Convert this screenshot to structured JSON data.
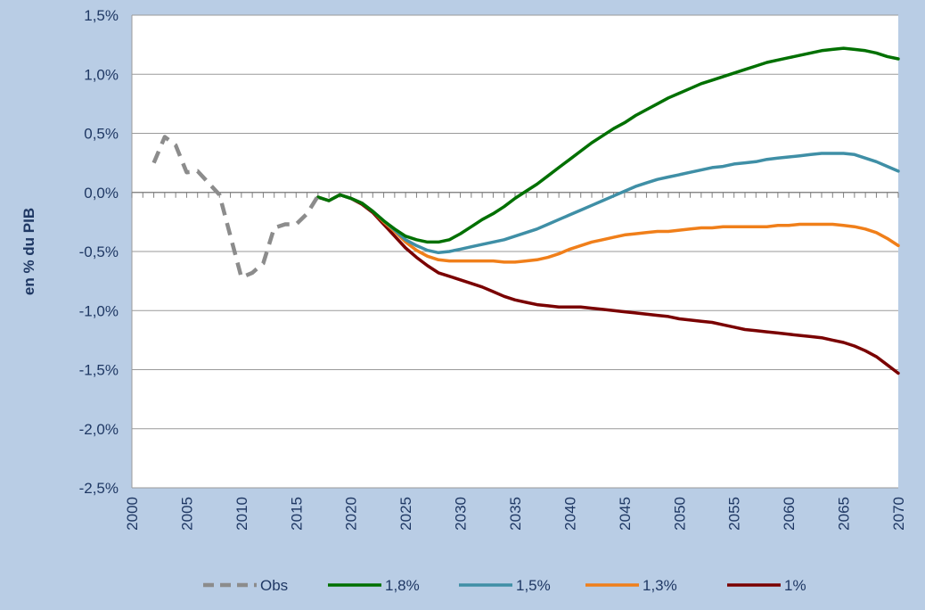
{
  "chart_data": {
    "type": "line",
    "title": "",
    "xlabel": "",
    "ylabel": "en % du PIB",
    "xlim": [
      2000,
      2070
    ],
    "ylim": [
      -2.5,
      1.5
    ],
    "x_ticks": [
      2000,
      2005,
      2010,
      2015,
      2020,
      2025,
      2030,
      2035,
      2040,
      2045,
      2050,
      2055,
      2060,
      2065,
      2070
    ],
    "x_tick_labels": [
      "2000",
      "2005",
      "2010",
      "2015",
      "2020",
      "2025",
      "2030",
      "2035",
      "2040",
      "2045",
      "2050",
      "2055",
      "2060",
      "2065",
      "2070"
    ],
    "y_ticks": [
      -2.5,
      -2.0,
      -1.5,
      -1.0,
      -0.5,
      0.0,
      0.5,
      1.0,
      1.5
    ],
    "y_tick_labels": [
      "-2,5%",
      "-2,0%",
      "-1,5%",
      "-1,0%",
      "-0,5%",
      "0,0%",
      "0,5%",
      "1,0%",
      "1,5%"
    ],
    "grid": true,
    "legend_position": "bottom",
    "series": [
      {
        "name": "Obs",
        "color": "#8c8c8c",
        "style": "dashed",
        "x": [
          2002,
          2003,
          2004,
          2005,
          2006,
          2007,
          2008,
          2009,
          2010,
          2011,
          2012,
          2013,
          2014,
          2015,
          2016,
          2017
        ],
        "y": [
          0.25,
          0.47,
          0.4,
          0.17,
          0.18,
          0.08,
          -0.02,
          -0.37,
          -0.72,
          -0.68,
          -0.6,
          -0.3,
          -0.27,
          -0.27,
          -0.18,
          -0.03
        ]
      },
      {
        "name": "1,8%",
        "color": "#007000",
        "style": "solid",
        "x": [
          2017,
          2018,
          2019,
          2020,
          2021,
          2022,
          2023,
          2024,
          2025,
          2026,
          2027,
          2028,
          2029,
          2030,
          2031,
          2032,
          2033,
          2034,
          2035,
          2036,
          2037,
          2038,
          2039,
          2040,
          2041,
          2042,
          2043,
          2044,
          2045,
          2046,
          2047,
          2048,
          2049,
          2050,
          2051,
          2052,
          2053,
          2054,
          2055,
          2056,
          2057,
          2058,
          2059,
          2060,
          2061,
          2062,
          2063,
          2064,
          2065,
          2066,
          2067,
          2068,
          2069,
          2070
        ],
        "y": [
          -0.04,
          -0.07,
          -0.02,
          -0.05,
          -0.09,
          -0.16,
          -0.24,
          -0.31,
          -0.37,
          -0.4,
          -0.42,
          -0.42,
          -0.4,
          -0.35,
          -0.29,
          -0.23,
          -0.18,
          -0.12,
          -0.05,
          0.01,
          0.07,
          0.14,
          0.21,
          0.28,
          0.35,
          0.42,
          0.48,
          0.54,
          0.59,
          0.65,
          0.7,
          0.75,
          0.8,
          0.84,
          0.88,
          0.92,
          0.95,
          0.98,
          1.01,
          1.04,
          1.07,
          1.1,
          1.12,
          1.14,
          1.16,
          1.18,
          1.2,
          1.21,
          1.22,
          1.21,
          1.2,
          1.18,
          1.15,
          1.13
        ]
      },
      {
        "name": "1,5%",
        "color": "#3f8fa6",
        "style": "solid",
        "x": [
          2017,
          2018,
          2019,
          2020,
          2021,
          2022,
          2023,
          2024,
          2025,
          2026,
          2027,
          2028,
          2029,
          2030,
          2031,
          2032,
          2033,
          2034,
          2035,
          2036,
          2037,
          2038,
          2039,
          2040,
          2041,
          2042,
          2043,
          2044,
          2045,
          2046,
          2047,
          2048,
          2049,
          2050,
          2051,
          2052,
          2053,
          2054,
          2055,
          2056,
          2057,
          2058,
          2059,
          2060,
          2061,
          2062,
          2063,
          2064,
          2065,
          2066,
          2067,
          2068,
          2069,
          2070
        ],
        "y": [
          -0.04,
          -0.07,
          -0.02,
          -0.05,
          -0.09,
          -0.16,
          -0.24,
          -0.32,
          -0.4,
          -0.45,
          -0.49,
          -0.51,
          -0.5,
          -0.48,
          -0.46,
          -0.44,
          -0.42,
          -0.4,
          -0.37,
          -0.34,
          -0.31,
          -0.27,
          -0.23,
          -0.19,
          -0.15,
          -0.11,
          -0.07,
          -0.03,
          0.01,
          0.05,
          0.08,
          0.11,
          0.13,
          0.15,
          0.17,
          0.19,
          0.21,
          0.22,
          0.24,
          0.25,
          0.26,
          0.28,
          0.29,
          0.3,
          0.31,
          0.32,
          0.33,
          0.33,
          0.33,
          0.32,
          0.29,
          0.26,
          0.22,
          0.18
        ]
      },
      {
        "name": "1,3%",
        "color": "#f07f1a",
        "style": "solid",
        "x": [
          2017,
          2018,
          2019,
          2020,
          2021,
          2022,
          2023,
          2024,
          2025,
          2026,
          2027,
          2028,
          2029,
          2030,
          2031,
          2032,
          2033,
          2034,
          2035,
          2036,
          2037,
          2038,
          2039,
          2040,
          2041,
          2042,
          2043,
          2044,
          2045,
          2046,
          2047,
          2048,
          2049,
          2050,
          2051,
          2052,
          2053,
          2054,
          2055,
          2056,
          2057,
          2058,
          2059,
          2060,
          2061,
          2062,
          2063,
          2064,
          2065,
          2066,
          2067,
          2068,
          2069,
          2070
        ],
        "y": [
          -0.04,
          -0.07,
          -0.02,
          -0.05,
          -0.09,
          -0.16,
          -0.25,
          -0.33,
          -0.42,
          -0.49,
          -0.54,
          -0.57,
          -0.58,
          -0.58,
          -0.58,
          -0.58,
          -0.58,
          -0.59,
          -0.59,
          -0.58,
          -0.57,
          -0.55,
          -0.52,
          -0.48,
          -0.45,
          -0.42,
          -0.4,
          -0.38,
          -0.36,
          -0.35,
          -0.34,
          -0.33,
          -0.33,
          -0.32,
          -0.31,
          -0.3,
          -0.3,
          -0.29,
          -0.29,
          -0.29,
          -0.29,
          -0.29,
          -0.28,
          -0.28,
          -0.27,
          -0.27,
          -0.27,
          -0.27,
          -0.28,
          -0.29,
          -0.31,
          -0.34,
          -0.39,
          -0.45
        ]
      },
      {
        "name": "1%",
        "color": "#7a0000",
        "style": "solid",
        "x": [
          2017,
          2018,
          2019,
          2020,
          2021,
          2022,
          2023,
          2024,
          2025,
          2026,
          2027,
          2028,
          2029,
          2030,
          2031,
          2032,
          2033,
          2034,
          2035,
          2036,
          2037,
          2038,
          2039,
          2040,
          2041,
          2042,
          2043,
          2044,
          2045,
          2046,
          2047,
          2048,
          2049,
          2050,
          2051,
          2052,
          2053,
          2054,
          2055,
          2056,
          2057,
          2058,
          2059,
          2060,
          2061,
          2062,
          2063,
          2064,
          2065,
          2066,
          2067,
          2068,
          2069,
          2070
        ],
        "y": [
          -0.04,
          -0.07,
          -0.02,
          -0.05,
          -0.1,
          -0.17,
          -0.27,
          -0.37,
          -0.47,
          -0.55,
          -0.62,
          -0.68,
          -0.71,
          -0.74,
          -0.77,
          -0.8,
          -0.84,
          -0.88,
          -0.91,
          -0.93,
          -0.95,
          -0.96,
          -0.97,
          -0.97,
          -0.97,
          -0.98,
          -0.99,
          -1.0,
          -1.01,
          -1.02,
          -1.03,
          -1.04,
          -1.05,
          -1.07,
          -1.08,
          -1.09,
          -1.1,
          -1.12,
          -1.14,
          -1.16,
          -1.17,
          -1.18,
          -1.19,
          -1.2,
          -1.21,
          -1.22,
          -1.23,
          -1.25,
          -1.27,
          -1.3,
          -1.34,
          -1.39,
          -1.46,
          -1.53
        ]
      }
    ]
  }
}
